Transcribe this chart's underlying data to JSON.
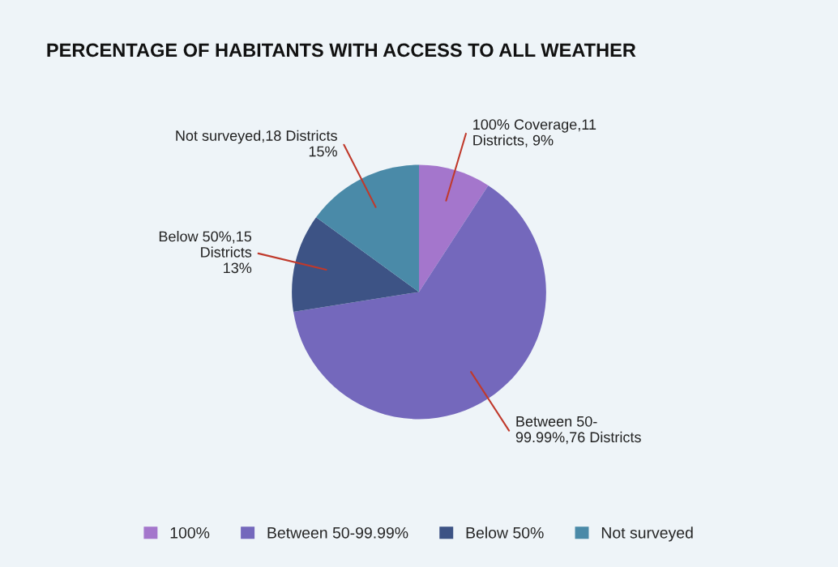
{
  "chart_data": {
    "type": "pie",
    "title": "PERCENTAGE OF HABITANTS WITH ACCESS TO ALL WEATHER",
    "categories": [
      "100%",
      "Between 50-99.99%",
      "Below 50%",
      "Not surveyed"
    ],
    "values": [
      11,
      76,
      15,
      18
    ],
    "colors": [
      "#a476cc",
      "#7468bc",
      "#3d5385",
      "#4a8aa8"
    ],
    "value_labels": [
      "100% Coverage,11\nDistricts, 9%",
      "Between 50-\n99.99%,76 Districts",
      "Below 50%,15\nDistricts\n13%",
      "Not surveyed,18 Districts\n15%"
    ],
    "legend": "bottom"
  }
}
